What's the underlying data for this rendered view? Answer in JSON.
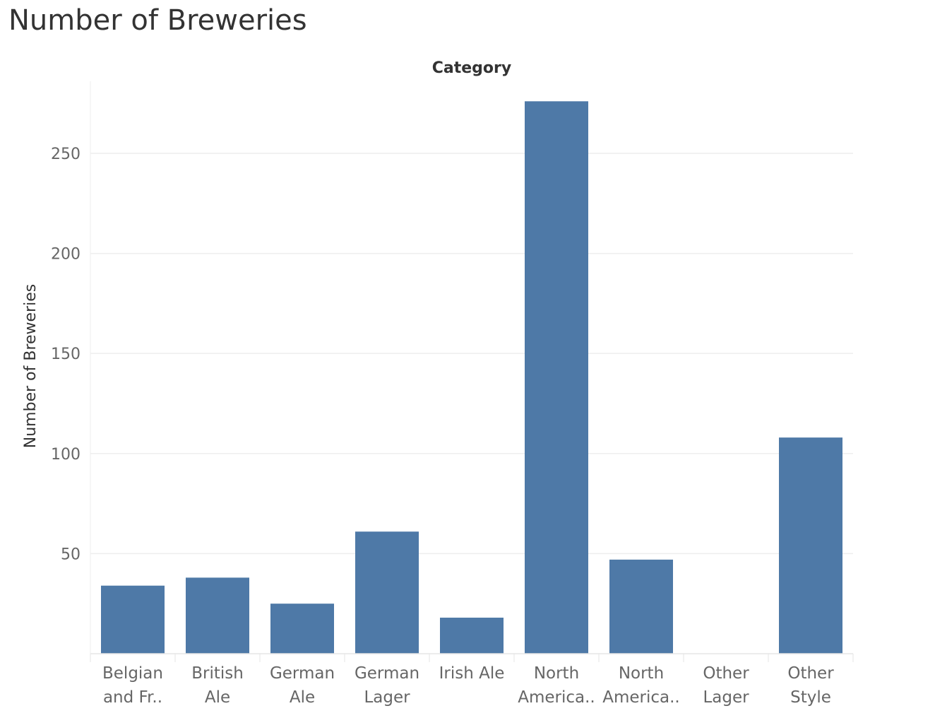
{
  "title": "Number of Breweries",
  "chart_data": {
    "type": "bar",
    "title": "Number of Breweries",
    "column_header": "Category",
    "xlabel": "Category",
    "ylabel": "Number of Breweries",
    "categories": [
      [
        "Belgian",
        "and Fr.."
      ],
      [
        "British",
        "Ale"
      ],
      [
        "German",
        "Ale"
      ],
      [
        "German",
        "Lager"
      ],
      [
        "Irish Ale"
      ],
      [
        "North",
        "America.."
      ],
      [
        "North",
        "America.."
      ],
      [
        "Other",
        "Lager"
      ],
      [
        "Other",
        "Style"
      ]
    ],
    "values": [
      34,
      38,
      25,
      61,
      18,
      276,
      47,
      0,
      108
    ],
    "ylim": [
      0,
      286
    ],
    "yticks": [
      50,
      100,
      150,
      200,
      250
    ],
    "grid": true,
    "bar_color": "#4e79a7"
  }
}
